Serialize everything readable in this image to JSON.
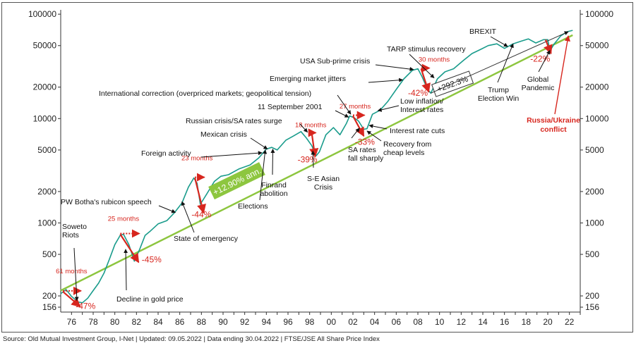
{
  "source_line": "Source: Old Mutual Investment Group, I-Net  |  Updated: 09.05.2022  |  Data ending 30.04.2022  |  FTSE/JSE All Share Price Index",
  "colors": {
    "line": "#1a9c8c",
    "trend": "#8dc63f",
    "annotation_red": "#d7261e",
    "axis": "#333333"
  },
  "chart_data": {
    "type": "line",
    "title": "",
    "xlabel": "",
    "ylabel": "",
    "y_scale": "log",
    "ylim": [
      140,
      110000
    ],
    "xlim": [
      1975.0,
      2023.0
    ],
    "y_ticks": [
      156,
      200,
      500,
      1000,
      2000,
      5000,
      10000,
      20000,
      50000,
      100000
    ],
    "x_tick_labels": [
      "76",
      "78",
      "80",
      "82",
      "84",
      "86",
      "88",
      "90",
      "92",
      "94",
      "96",
      "98",
      "00",
      "02",
      "04",
      "06",
      "08",
      "10",
      "12",
      "14",
      "16",
      "18",
      "20",
      "22"
    ],
    "series": [
      {
        "x": [
          1975.0,
          1975.5,
          1976.0,
          1976.6,
          1977.0,
          1977.5,
          1978.0,
          1978.5,
          1979.0,
          1979.5,
          1980.0,
          1980.5,
          1980.8,
          1981.3,
          1981.8,
          1982.3,
          1982.8,
          1983.3,
          1984.0,
          1984.8,
          1985.5,
          1986.2,
          1986.8,
          1987.3,
          1987.6,
          1987.9,
          1988.5,
          1989.2,
          1989.8,
          1990.5,
          1991.5,
          1992.5,
          1993.3,
          1994.0,
          1994.5,
          1995.0,
          1995.8,
          1996.5,
          1997.2,
          1997.7,
          1998.2,
          1998.6,
          1998.9,
          1999.5,
          2000.2,
          2000.8,
          2001.4,
          2001.7,
          2002.1,
          2002.5,
          2003.0,
          2003.3,
          2003.8,
          2004.5,
          2005.2,
          2006.0,
          2006.7,
          2007.5,
          2008.0,
          2008.4,
          2008.9,
          2009.2,
          2009.8,
          2010.5,
          2011.3,
          2012.2,
          2013.0,
          2013.8,
          2014.5,
          2015.3,
          2016.0,
          2016.8,
          2017.5,
          2018.2,
          2018.9,
          2019.6,
          2020.0,
          2020.2,
          2020.6,
          2021.2,
          2021.8,
          2022.3
        ],
        "values": [
          210,
          230,
          198,
          175,
          172,
          190,
          225,
          265,
          330,
          450,
          620,
          760,
          780,
          620,
          430,
          560,
          760,
          840,
          980,
          1050,
          1250,
          1550,
          2200,
          2700,
          2400,
          1510,
          1900,
          2500,
          2800,
          2900,
          3300,
          3600,
          4200,
          5100,
          5300,
          5000,
          6200,
          6800,
          7500,
          6500,
          5500,
          4400,
          4800,
          7000,
          8200,
          7000,
          9000,
          10600,
          10200,
          9500,
          7900,
          8000,
          11000,
          12000,
          14500,
          19000,
          24000,
          29000,
          30000,
          25000,
          19000,
          17500,
          24000,
          28000,
          30000,
          36000,
          42000,
          46000,
          50000,
          52000,
          47000,
          52000,
          55000,
          58000,
          53000,
          57000,
          57000,
          44500,
          52000,
          62000,
          68000,
          70000
        ]
      }
    ],
    "trend": {
      "label": "+12.90% ann.",
      "x_start": 1975.0,
      "x_end": 2022.3,
      "y_start": 225,
      "y_end": 63000
    },
    "growth_box": {
      "label": "+292.3%"
    },
    "drawdowns": [
      {
        "months": "61 months",
        "pct": "-47%"
      },
      {
        "months": "25 months",
        "pct": "-45%"
      },
      {
        "months": "23 months",
        "pct": "-44%"
      },
      {
        "months": "18 months",
        "pct": "-39%"
      },
      {
        "months": "27 months",
        "pct": "-33%"
      },
      {
        "months": "30 months",
        "pct": "-42%"
      },
      {
        "months": "",
        "pct": "-22%"
      }
    ],
    "annotations": [
      "Soweto Riots",
      "Decline in gold price",
      "PW Botha's rubicon speech",
      "State of emergency",
      "Foreign activity",
      "Elections",
      "Mexican crisis",
      "Finrand abolition",
      "Russian crisis/SA rates surge",
      "S-E Asian Crisis",
      "International correction (overpriced markets; geopolitical tension)",
      "11 September 2001",
      "SA rates fall sharply",
      "Recovery from cheap levels",
      "Interest rate cuts",
      "Low inflation/ Interest rates",
      "Emerging market jitters",
      "USA Sub-prime crisis",
      "TARP stimulus recovery",
      "BREXIT",
      "Trump Election Win",
      "Global Pandemic",
      "Russia/Ukraine conflict"
    ]
  }
}
